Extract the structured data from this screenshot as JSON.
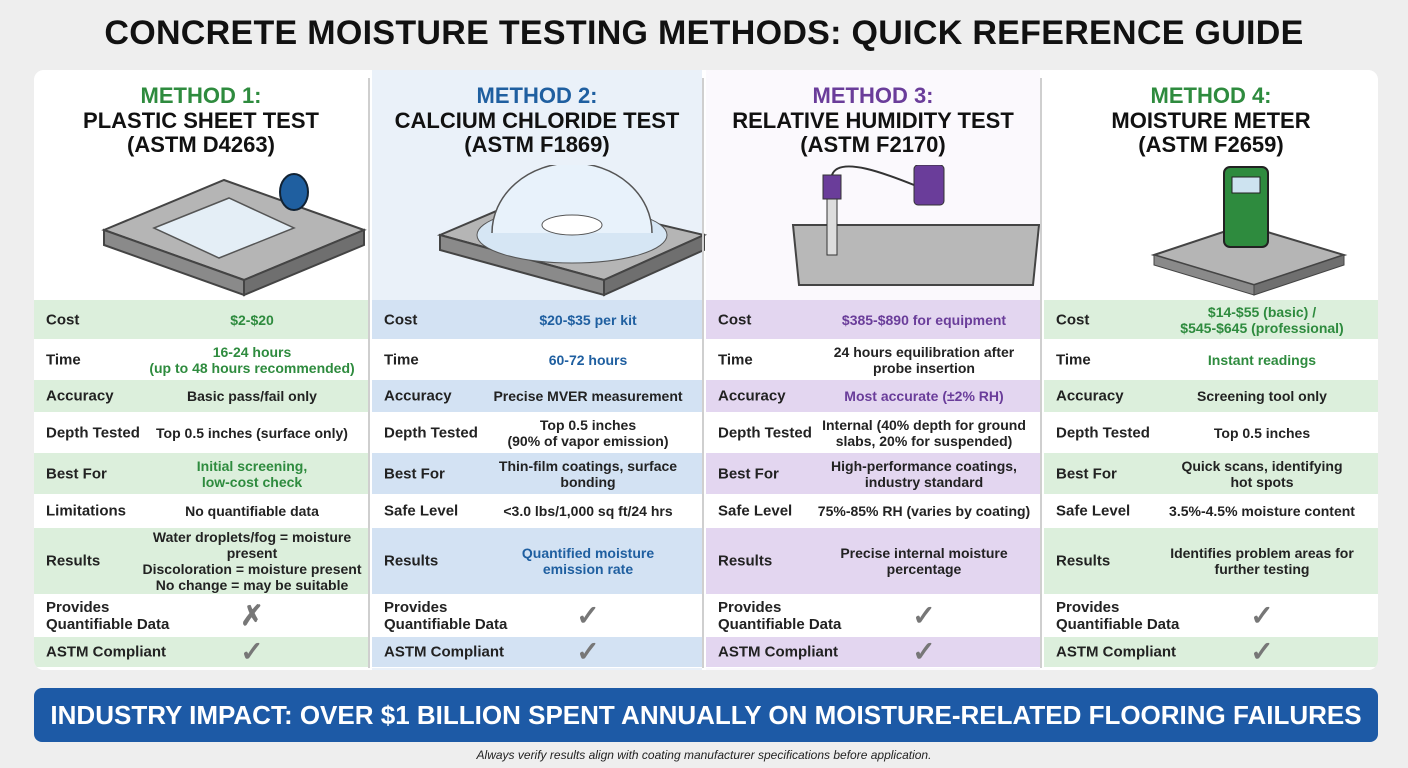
{
  "title": "CONCRETE MOISTURE TESTING METHODS: QUICK REFERENCE GUIDE",
  "methods": [
    {
      "label": "METHOD 1:",
      "name": "PLASTIC SHEET TEST",
      "standard": "(ASTM D4263)",
      "color": "#2e8b3e",
      "shade": "#dcefdc",
      "rows": [
        {
          "label": "Cost",
          "value": "$2-$20"
        },
        {
          "label": "Time",
          "value": "16-24 hours\n(up to 48 hours recommended)"
        },
        {
          "label": "Accuracy",
          "value": "Basic pass/fail only"
        },
        {
          "label": "Depth Tested",
          "value": "Top 0.5 inches (surface only)"
        },
        {
          "label": "Best For",
          "value": "Initial screening,\nlow-cost check"
        },
        {
          "label": "Limitations",
          "value": "No quantifiable data"
        },
        {
          "label": "Results",
          "value": "Water droplets/fog = moisture\npresent\nDiscoloration = moisture present\nNo change = may be suitable"
        },
        {
          "label": "Provides\nQuantifiable Data",
          "value": "✗"
        },
        {
          "label": "ASTM Compliant",
          "value": "✓"
        }
      ]
    },
    {
      "label": "METHOD 2:",
      "name": "CALCIUM CHLORIDE TEST",
      "standard": "(ASTM F1869)",
      "color": "#1f5fa0",
      "shade": "#d3e2f3",
      "rows": [
        {
          "label": "Cost",
          "value": "$20-$35 per kit"
        },
        {
          "label": "Time",
          "value": "60-72 hours"
        },
        {
          "label": "Accuracy",
          "value": "Precise MVER measurement"
        },
        {
          "label": "Depth Tested",
          "value": "Top 0.5 inches\n(90% of vapor emission)"
        },
        {
          "label": "Best For",
          "value": "Thin-film coatings, surface\nbonding"
        },
        {
          "label": "Safe Level",
          "value": "<3.0 lbs/1,000 sq ft/24 hrs"
        },
        {
          "label": "Results",
          "value": "Quantified moisture\nemission rate"
        },
        {
          "label": "Provides\nQuantifiable Data",
          "value": "✓"
        },
        {
          "label": "ASTM Compliant",
          "value": "✓"
        }
      ]
    },
    {
      "label": "METHOD 3:",
      "name": "RELATIVE HUMIDITY TEST",
      "standard": "(ASTM F2170)",
      "color": "#6a3d9a",
      "shade": "#e3d6f0",
      "rows": [
        {
          "label": "Cost",
          "value": "$385-$890 for equipment"
        },
        {
          "label": "Time",
          "value": "24 hours equilibration after\nprobe insertion"
        },
        {
          "label": "Accuracy",
          "value": "Most accurate (±2% RH)"
        },
        {
          "label": "Depth Tested",
          "value": "Internal (40% depth for ground\nslabs, 20% for suspended)"
        },
        {
          "label": "Best For",
          "value": "High-performance coatings,\nindustry standard"
        },
        {
          "label": "Safe Level",
          "value": "75%-85% RH (varies by coating)"
        },
        {
          "label": "Results",
          "value": "Precise internal moisture\npercentage"
        },
        {
          "label": "Provides\nQuantifiable Data",
          "value": "✓"
        },
        {
          "label": "ASTM Compliant",
          "value": "✓"
        }
      ]
    },
    {
      "label": "METHOD 4:",
      "name": "MOISTURE METER",
      "standard": "(ASTM F2659)",
      "color": "#2e8b3e",
      "shade": "#dcefdc",
      "rows": [
        {
          "label": "Cost",
          "value": "$14-$55 (basic) /\n$545-$645 (professional)"
        },
        {
          "label": "Time",
          "value": "Instant readings"
        },
        {
          "label": "Accuracy",
          "value": "Screening tool only"
        },
        {
          "label": "Depth Tested",
          "value": "Top 0.5 inches"
        },
        {
          "label": "Best For",
          "value": "Quick scans, identifying\nhot spots"
        },
        {
          "label": "Safe Level",
          "value": "3.5%-4.5% moisture content"
        },
        {
          "label": "Results",
          "value": "Identifies problem areas for\nfurther testing"
        },
        {
          "label": "Provides\nQuantifiable Data",
          "value": "✓"
        },
        {
          "label": "ASTM Compliant",
          "value": "✓"
        }
      ]
    }
  ],
  "banner": "INDUSTRY IMPACT: OVER $1 BILLION SPENT ANNUALLY ON MOISTURE-RELATED FLOORING FAILURES",
  "footnote": "Always verify results align with coating manufacturer specifications before application."
}
